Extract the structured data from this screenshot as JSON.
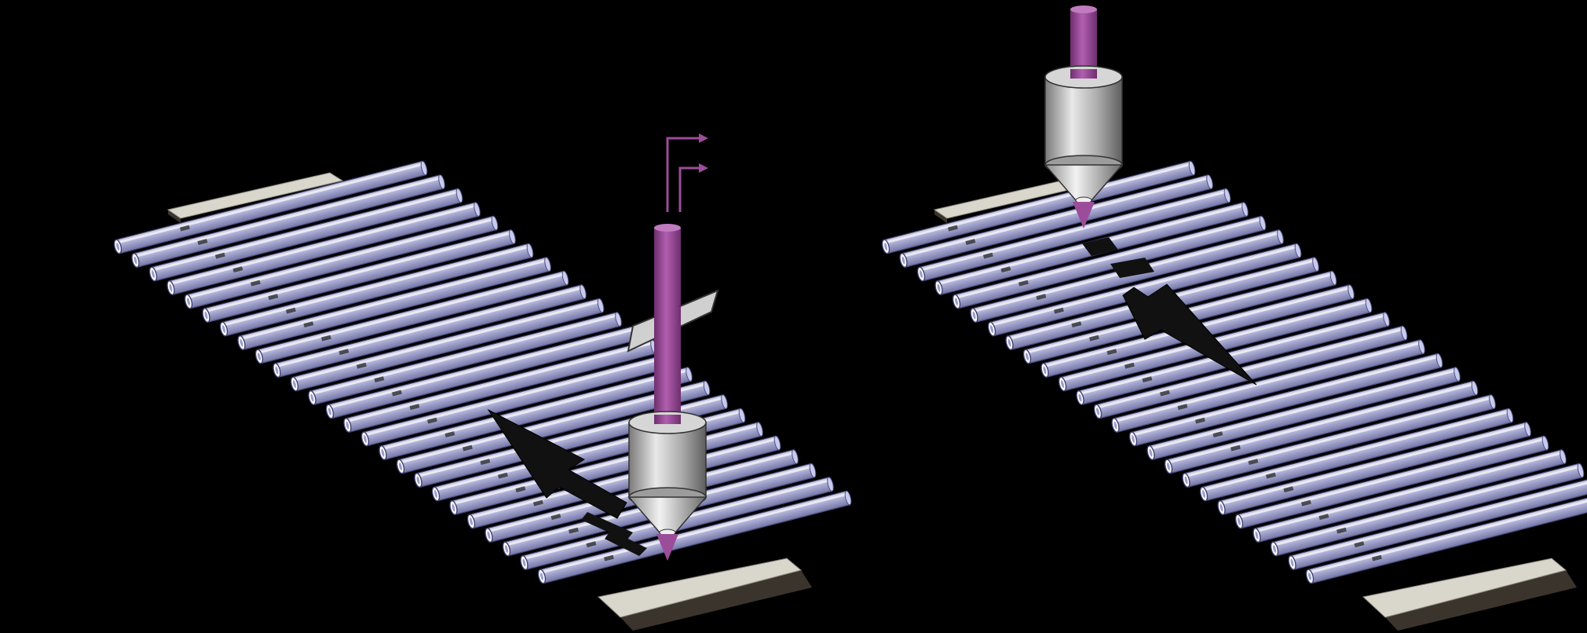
{
  "figure": {
    "background": "#000000",
    "panels": [
      {
        "id": "left-panel",
        "capillary_count": 25,
        "objective": "present",
        "beam": "present",
        "beam_splitter": "present",
        "motion_arrow": "up-left",
        "sample_marks": "present"
      },
      {
        "id": "right-panel",
        "capillary_count": 25,
        "objective": "present",
        "beam": "present",
        "motion_arrow": "down-right",
        "sample_marks": "present"
      }
    ],
    "colors": {
      "capillary_fill": "#aeb0dc",
      "capillary_highlight": "#e6e7f7",
      "capillary_edge": "#4e4f80",
      "substrate_top": "#d9d6cc",
      "substrate_edge": "#3b342c",
      "beam": "#9b4d9a",
      "beam_dark": "#6e2f6e",
      "objective_light": "#e4e4e4",
      "objective_dark": "#6a6a6a",
      "arrow": "#111111"
    }
  }
}
